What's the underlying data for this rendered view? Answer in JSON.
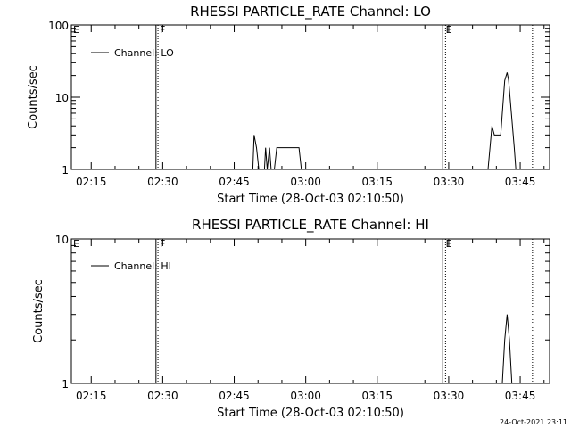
{
  "chart_data": [
    {
      "type": "line",
      "title": "RHESSI PARTICLE_RATE Channel: LO",
      "xlabel": "Start Time (28-Oct-03 02:10:50)",
      "ylabel": "Counts/sec",
      "yscale": "log",
      "ylim": [
        1,
        100
      ],
      "xlim": [
        "02:10:50",
        "03:51:10"
      ],
      "xticks": [
        "02:15",
        "02:30",
        "02:45",
        "03:00",
        "03:15",
        "03:30",
        "03:45"
      ],
      "yticks": [
        "1",
        "10",
        "100"
      ],
      "legend": {
        "label": "Channel: LO",
        "placement": "top-left"
      },
      "grid": false,
      "flags": [
        {
          "label": "E",
          "time": "02:10:50"
        },
        {
          "label": "F",
          "time": "02:29:00"
        },
        {
          "label": "E",
          "time": "03:29:00"
        }
      ],
      "markers": [
        {
          "time": "02:28:35",
          "style": "solid"
        },
        {
          "time": "02:29:00",
          "style": "dotted"
        },
        {
          "time": "03:28:45",
          "style": "solid"
        },
        {
          "time": "03:29:20",
          "style": "dotted"
        },
        {
          "time": "03:47:35",
          "style": "dotted"
        }
      ],
      "series": [
        {
          "name": "Channel: LO",
          "segments": [
            [
              [
                "02:48:55",
                1
              ],
              [
                "02:49:10",
                3
              ],
              [
                "02:49:40",
                2
              ],
              [
                "02:50:10",
                1
              ]
            ],
            [
              [
                "02:51:20",
                1
              ],
              [
                "02:51:35",
                2
              ],
              [
                "02:51:55",
                1
              ],
              [
                "02:52:25",
                2
              ],
              [
                "02:52:45",
                1
              ]
            ],
            [
              [
                "02:53:25",
                1
              ],
              [
                "02:53:55",
                2
              ],
              [
                "02:58:35",
                2
              ],
              [
                "02:59:05",
                1
              ]
            ],
            [
              [
                "03:38:15",
                1
              ],
              [
                "03:39:05",
                4
              ],
              [
                "03:39:35",
                3
              ],
              [
                "03:40:55",
                3
              ],
              [
                "03:41:45",
                17
              ],
              [
                "03:42:15",
                22
              ],
              [
                "03:42:35",
                17
              ],
              [
                "03:43:45",
                2
              ],
              [
                "03:44:05",
                1
              ]
            ]
          ]
        }
      ]
    },
    {
      "type": "line",
      "title": "RHESSI PARTICLE_RATE Channel: HI",
      "xlabel": "Start Time (28-Oct-03 02:10:50)",
      "ylabel": "Counts/sec",
      "yscale": "log",
      "ylim": [
        1,
        10
      ],
      "xlim": [
        "02:10:50",
        "03:51:10"
      ],
      "xticks": [
        "02:15",
        "02:30",
        "02:45",
        "03:00",
        "03:15",
        "03:30",
        "03:45"
      ],
      "yticks": [
        "1",
        "10"
      ],
      "legend": {
        "label": "Channel: HI",
        "placement": "top-left"
      },
      "grid": false,
      "flags": [
        {
          "label": "E",
          "time": "02:10:50"
        },
        {
          "label": "F",
          "time": "02:29:00"
        },
        {
          "label": "E",
          "time": "03:29:00"
        }
      ],
      "markers": [
        {
          "time": "02:28:35",
          "style": "solid"
        },
        {
          "time": "02:29:00",
          "style": "dotted"
        },
        {
          "time": "03:28:45",
          "style": "solid"
        },
        {
          "time": "03:29:20",
          "style": "dotted"
        },
        {
          "time": "03:47:35",
          "style": "dotted"
        }
      ],
      "series": [
        {
          "name": "Channel: HI",
          "segments": [
            [
              [
                "03:41:15",
                1
              ],
              [
                "03:41:45",
                2
              ],
              [
                "03:42:15",
                3
              ],
              [
                "03:42:45",
                2
              ],
              [
                "03:43:15",
                1
              ]
            ]
          ]
        }
      ]
    }
  ],
  "footer": {
    "timestamp": "24-Oct-2021 23:11"
  }
}
